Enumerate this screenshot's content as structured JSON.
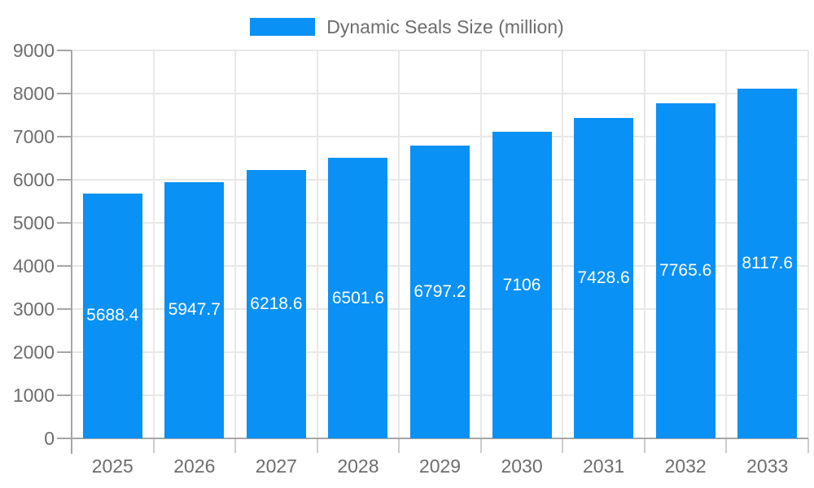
{
  "chart_data": {
    "type": "bar",
    "legend": {
      "position": "top",
      "label": "Dynamic Seals Size (million)"
    },
    "categories": [
      "2025",
      "2026",
      "2027",
      "2028",
      "2029",
      "2030",
      "2031",
      "2032",
      "2033"
    ],
    "values": [
      5688.4,
      5947.7,
      6218.6,
      6501.6,
      6797.2,
      7106,
      7428.6,
      7765.6,
      8117.6
    ],
    "xlabel": "",
    "ylabel": "",
    "ylim": [
      0,
      9000
    ],
    "yticks": [
      0,
      1000,
      2000,
      3000,
      4000,
      5000,
      6000,
      7000,
      8000,
      9000
    ],
    "grid": true,
    "value_labels_inside_bars": true,
    "colors": {
      "bar": "#0a91f5",
      "grid": "#e8e8e8",
      "axis": "#a6a6a6",
      "category_tick": "#cccccc",
      "text": "#6d6d6d",
      "value_text": "#ffffff",
      "background": "#ffffff"
    }
  }
}
